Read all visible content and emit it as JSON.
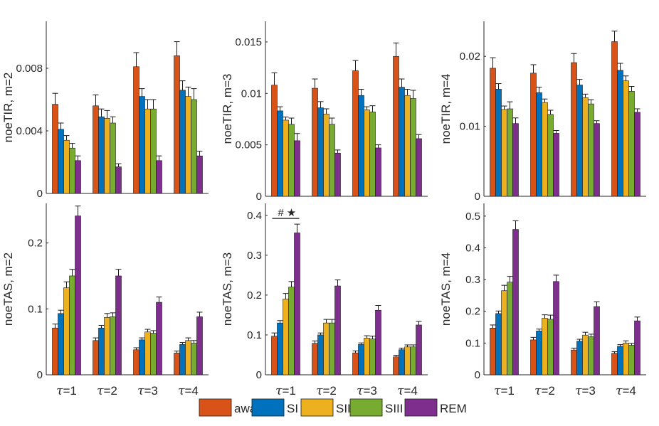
{
  "legend": {
    "entries": [
      {
        "name": "awake",
        "color": "#D95319"
      },
      {
        "name": "SI",
        "color": "#0072BD"
      },
      {
        "name": "SII",
        "color": "#EDB120"
      },
      {
        "name": "SIII",
        "color": "#77AC30"
      },
      {
        "name": "REM",
        "color": "#7E2F8E"
      }
    ]
  },
  "chart_data": [
    {
      "type": "bar",
      "ylabel": "noeTIR, m=2",
      "ylim": [
        0,
        0.011
      ],
      "yticks": [
        0,
        0.004,
        0.008
      ],
      "ytick_labels": [
        "0",
        "0.004",
        "0.008"
      ],
      "categories": [
        "τ=1",
        "τ=2",
        "τ=3",
        "τ=4"
      ],
      "show_xticklabels": false,
      "series": [
        {
          "name": "awake",
          "values": [
            0.0057,
            0.0056,
            0.0081,
            0.0088
          ],
          "errors": [
            0.0007,
            0.0007,
            0.0009,
            0.0009
          ]
        },
        {
          "name": "SI",
          "values": [
            0.0041,
            0.0049,
            0.0062,
            0.0066
          ],
          "errors": [
            0.0004,
            0.0005,
            0.0005,
            0.0006
          ]
        },
        {
          "name": "SII",
          "values": [
            0.0034,
            0.0048,
            0.0054,
            0.0062
          ],
          "errors": [
            0.0003,
            0.0005,
            0.0006,
            0.0006
          ]
        },
        {
          "name": "SIII",
          "values": [
            0.0029,
            0.0045,
            0.0054,
            0.006
          ],
          "errors": [
            0.0003,
            0.0004,
            0.0006,
            0.0007
          ]
        },
        {
          "name": "REM",
          "values": [
            0.0021,
            0.0017,
            0.0021,
            0.0024
          ],
          "errors": [
            0.0003,
            0.0002,
            0.0003,
            0.0003
          ]
        }
      ]
    },
    {
      "type": "bar",
      "ylabel": "noeTIR, m=3",
      "ylim": [
        0,
        0.017
      ],
      "yticks": [
        0,
        0.005,
        0.01,
        0.015
      ],
      "ytick_labels": [
        "0",
        "0.005",
        "0.01",
        "0.015"
      ],
      "categories": [
        "τ=1",
        "τ=2",
        "τ=3",
        "τ=4"
      ],
      "show_xticklabels": false,
      "series": [
        {
          "name": "awake",
          "values": [
            0.0108,
            0.0105,
            0.0122,
            0.0136
          ],
          "errors": [
            0.0012,
            0.0009,
            0.001,
            0.0013
          ]
        },
        {
          "name": "SI",
          "values": [
            0.0083,
            0.0086,
            0.0098,
            0.0106
          ],
          "errors": [
            0.0004,
            0.0006,
            0.0006,
            0.0008
          ]
        },
        {
          "name": "SII",
          "values": [
            0.0074,
            0.008,
            0.0084,
            0.0098
          ],
          "errors": [
            0.0003,
            0.0005,
            0.0003,
            0.0006
          ]
        },
        {
          "name": "SIII",
          "values": [
            0.007,
            0.007,
            0.0082,
            0.0095
          ],
          "errors": [
            0.0006,
            0.0006,
            0.0006,
            0.0008
          ]
        },
        {
          "name": "REM",
          "values": [
            0.0054,
            0.0042,
            0.0047,
            0.0056
          ],
          "errors": [
            0.0007,
            0.0003,
            0.0003,
            0.0004
          ]
        }
      ]
    },
    {
      "type": "bar",
      "ylabel": "noeTIR, m=4",
      "ylim": [
        0,
        0.025
      ],
      "yticks": [
        0,
        0.01,
        0.02
      ],
      "ytick_labels": [
        "0",
        "0.01",
        "0.02"
      ],
      "categories": [
        "τ=1",
        "τ=2",
        "τ=3",
        "τ=4"
      ],
      "show_xticklabels": false,
      "series": [
        {
          "name": "awake",
          "values": [
            0.0183,
            0.0176,
            0.0191,
            0.0221
          ],
          "errors": [
            0.0015,
            0.0012,
            0.0013,
            0.0015
          ]
        },
        {
          "name": "SI",
          "values": [
            0.0153,
            0.0148,
            0.0159,
            0.018
          ],
          "errors": [
            0.0008,
            0.0008,
            0.0008,
            0.001
          ]
        },
        {
          "name": "SII",
          "values": [
            0.0124,
            0.0134,
            0.0141,
            0.0165
          ],
          "errors": [
            0.0005,
            0.0005,
            0.0005,
            0.0007
          ]
        },
        {
          "name": "SIII",
          "values": [
            0.0125,
            0.0117,
            0.0132,
            0.015
          ],
          "errors": [
            0.001,
            0.0006,
            0.0006,
            0.0007
          ]
        },
        {
          "name": "REM",
          "values": [
            0.0104,
            0.009,
            0.0104,
            0.012
          ],
          "errors": [
            0.0008,
            0.0004,
            0.0004,
            0.0005
          ]
        }
      ]
    },
    {
      "type": "bar",
      "ylabel": "noeTAS, m=2",
      "ylim": [
        0,
        0.26
      ],
      "yticks": [
        0,
        0.1,
        0.2
      ],
      "ytick_labels": [
        "0",
        "0.1",
        "0.2"
      ],
      "categories": [
        "τ=1",
        "τ=2",
        "τ=3",
        "τ=4"
      ],
      "show_xticklabels": true,
      "series": [
        {
          "name": "awake",
          "values": [
            0.071,
            0.052,
            0.038,
            0.033
          ],
          "errors": [
            0.006,
            0.004,
            0.003,
            0.003
          ]
        },
        {
          "name": "SI",
          "values": [
            0.093,
            0.071,
            0.053,
            0.046
          ],
          "errors": [
            0.005,
            0.004,
            0.003,
            0.003
          ]
        },
        {
          "name": "SII",
          "values": [
            0.132,
            0.087,
            0.065,
            0.052
          ],
          "errors": [
            0.009,
            0.006,
            0.004,
            0.004
          ]
        },
        {
          "name": "SIII",
          "values": [
            0.15,
            0.088,
            0.063,
            0.048
          ],
          "errors": [
            0.01,
            0.006,
            0.004,
            0.004
          ]
        },
        {
          "name": "REM",
          "values": [
            0.241,
            0.15,
            0.11,
            0.088
          ],
          "errors": [
            0.015,
            0.01,
            0.008,
            0.007
          ]
        }
      ]
    },
    {
      "type": "bar",
      "ylabel": "noeTAS, m=3",
      "ylim": [
        0,
        0.43
      ],
      "yticks": [
        0,
        0.1,
        0.2,
        0.3,
        0.4
      ],
      "ytick_labels": [
        "0",
        "0.1",
        "0.2",
        "0.3",
        "0.4"
      ],
      "categories": [
        "τ=1",
        "τ=2",
        "τ=3",
        "τ=4"
      ],
      "show_xticklabels": true,
      "annotations": [
        "#",
        "★"
      ],
      "series": [
        {
          "name": "awake",
          "values": [
            0.097,
            0.079,
            0.055,
            0.045
          ],
          "errors": [
            0.008,
            0.006,
            0.005,
            0.004
          ]
        },
        {
          "name": "SI",
          "values": [
            0.13,
            0.1,
            0.076,
            0.063
          ],
          "errors": [
            0.006,
            0.005,
            0.004,
            0.004
          ]
        },
        {
          "name": "SII",
          "values": [
            0.19,
            0.13,
            0.092,
            0.07
          ],
          "errors": [
            0.014,
            0.009,
            0.006,
            0.005
          ]
        },
        {
          "name": "SIII",
          "values": [
            0.22,
            0.13,
            0.09,
            0.07
          ],
          "errors": [
            0.014,
            0.009,
            0.007,
            0.005
          ]
        },
        {
          "name": "REM",
          "values": [
            0.356,
            0.223,
            0.162,
            0.125
          ],
          "errors": [
            0.022,
            0.015,
            0.012,
            0.009
          ]
        }
      ]
    },
    {
      "type": "bar",
      "ylabel": "noeTAS, m=4",
      "ylim": [
        0,
        0.54
      ],
      "yticks": [
        0,
        0.1,
        0.2,
        0.3,
        0.4,
        0.5
      ],
      "ytick_labels": [
        "0",
        "0.1",
        "0.2",
        "0.3",
        "0.4",
        "0.5"
      ],
      "categories": [
        "τ=1",
        "τ=2",
        "τ=3",
        "τ=4"
      ],
      "show_xticklabels": true,
      "series": [
        {
          "name": "awake",
          "values": [
            0.147,
            0.11,
            0.078,
            0.068
          ],
          "errors": [
            0.01,
            0.008,
            0.006,
            0.005
          ]
        },
        {
          "name": "SI",
          "values": [
            0.193,
            0.138,
            0.106,
            0.09
          ],
          "errors": [
            0.008,
            0.006,
            0.006,
            0.005
          ]
        },
        {
          "name": "SII",
          "values": [
            0.265,
            0.178,
            0.125,
            0.1
          ],
          "errors": [
            0.017,
            0.011,
            0.009,
            0.007
          ]
        },
        {
          "name": "SIII",
          "values": [
            0.292,
            0.175,
            0.12,
            0.093
          ],
          "errors": [
            0.018,
            0.013,
            0.008,
            0.006
          ]
        },
        {
          "name": "REM",
          "values": [
            0.458,
            0.294,
            0.215,
            0.17
          ],
          "errors": [
            0.027,
            0.02,
            0.015,
            0.012
          ]
        }
      ]
    }
  ]
}
